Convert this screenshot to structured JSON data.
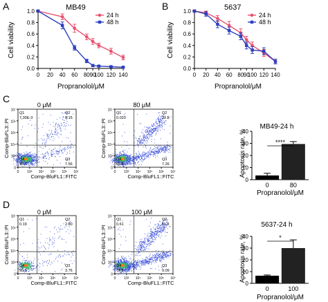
{
  "panels": {
    "A": {
      "letter": "A"
    },
    "B": {
      "letter": "B"
    },
    "C": {
      "letter": "C"
    },
    "D": {
      "letter": "D"
    }
  },
  "flow": {
    "C": {
      "left": {
        "title": "0 μM",
        "q1": "7.30E-3",
        "q2": "0.15",
        "q3": "7.56",
        "q4": "92.3",
        "xlabel": "Comp-BluFL1::FITC",
        "ylabel": "Comp-BluFL3::PI"
      },
      "right": {
        "title": "80 μM",
        "q1": "0.020",
        "q2": "22.9",
        "q3": "7.26",
        "q4": "69.8",
        "xlabel": "Comp-BluFL1::FITC",
        "ylabel": "Comp-BluFL3::PI"
      }
    },
    "D": {
      "left": {
        "title": "0 μM",
        "q1": "0.19",
        "q2": "2.80",
        "q3": "3.76",
        "q4": "93.3",
        "xlabel": "Comp-BluFL1::FITC",
        "ylabel": "Comp-BluFL3::PI"
      },
      "right": {
        "title": "100 μM",
        "q1": "0.61",
        "q2": "11.8",
        "q3": "9.09",
        "q4": "78.5",
        "xlabel": "Comp-BluFL1::FITC",
        "ylabel": "Comp-BluFL3::PI"
      }
    },
    "y_ticks": [
      "10⁷",
      "10⁶",
      "10⁵",
      "10⁴",
      "10³",
      "0"
    ],
    "x_ticks": [
      "0",
      "10³",
      "10⁴",
      "10⁵",
      "10⁶",
      "10⁷"
    ]
  },
  "colors": {
    "h24": "#e8506e",
    "h48": "#2c3fc0",
    "bar0": "#000000",
    "bar1": "#222222"
  },
  "chart_data": [
    {
      "type": "line",
      "title": "MB49",
      "xlabel": "Propranolol/μM",
      "ylabel": "Cell viability",
      "x": [
        0,
        40,
        60,
        80,
        90,
        100,
        120,
        140
      ],
      "xticks": [
        "0",
        "20",
        "40",
        "60",
        "80",
        "90",
        "100",
        "120",
        "140"
      ],
      "yticks": [
        "0.0",
        "0.2",
        "0.4",
        "0.6",
        "0.8",
        "1.0"
      ],
      "ylim": [
        0,
        1.0
      ],
      "legend": "top-right",
      "series": [
        {
          "name": "24 h",
          "values": [
            1.0,
            0.9,
            0.7,
            0.55,
            0.47,
            0.4,
            0.3,
            0.19
          ],
          "errors": [
            0.02,
            0.05,
            0.07,
            0.05,
            0.05,
            0.04,
            0.05,
            0.04
          ]
        },
        {
          "name": "48 h",
          "values": [
            1.0,
            0.75,
            0.36,
            0.13,
            0.05,
            0.04,
            0.03,
            0.02
          ],
          "errors": [
            0.02,
            0.06,
            0.04,
            0.03,
            0.02,
            0.01,
            0.01,
            0.01
          ]
        }
      ]
    },
    {
      "type": "line",
      "title": "5637",
      "xlabel": "Propranolol/μM",
      "ylabel": "Cell viability",
      "x": [
        0,
        20,
        40,
        60,
        80,
        90,
        100,
        120,
        140
      ],
      "xticks": [
        "0",
        "20",
        "40",
        "60",
        "80",
        "90",
        "100",
        "120",
        "140"
      ],
      "yticks": [
        "0.0",
        "0.2",
        "0.4",
        "0.6",
        "0.8",
        "1.0"
      ],
      "ylim": [
        0,
        1.0
      ],
      "legend": "top-right",
      "series": [
        {
          "name": "24 h",
          "values": [
            1.0,
            0.97,
            0.87,
            0.75,
            0.62,
            0.5,
            0.4,
            0.27,
            0.12
          ],
          "errors": [
            0.02,
            0.03,
            0.05,
            0.07,
            0.07,
            0.06,
            0.06,
            0.06,
            0.04
          ]
        },
        {
          "name": "48 h",
          "values": [
            1.0,
            0.95,
            0.77,
            0.66,
            0.56,
            0.4,
            0.32,
            0.3,
            0.12
          ],
          "errors": [
            0.02,
            0.04,
            0.06,
            0.06,
            0.06,
            0.06,
            0.06,
            0.06,
            0.04
          ]
        }
      ]
    },
    {
      "type": "bar",
      "title": "MB49-24 h",
      "xlabel": "Propranolol/μM",
      "ylabel": "Apoptosis rate, %",
      "categories": [
        "0",
        "80"
      ],
      "values": [
        3.5,
        29.5
      ],
      "errors": [
        1.8,
        2.0
      ],
      "yticks": [
        "0",
        "10",
        "20",
        "30",
        "40"
      ],
      "ylim": [
        0,
        40
      ],
      "significance": "****"
    },
    {
      "type": "bar",
      "title": "5637-24 h",
      "xlabel": "Propranolol/μM",
      "ylabel": "Apoptosis rate, %",
      "categories": [
        "0",
        "100"
      ],
      "values": [
        6.5,
        30.0
      ],
      "errors": [
        0.6,
        7.0
      ],
      "yticks": [
        "0",
        "10",
        "20",
        "30",
        "40"
      ],
      "ylim": [
        0,
        40
      ],
      "significance": "*"
    }
  ]
}
